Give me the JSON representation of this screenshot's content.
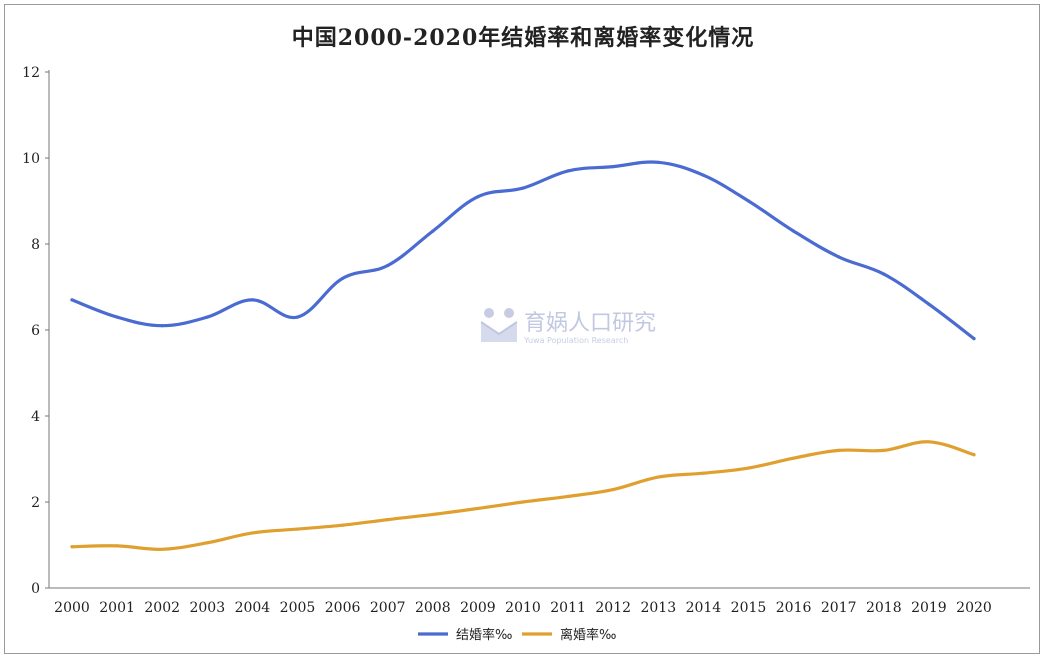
{
  "chart_data": {
    "type": "line",
    "title": "中国2000-2020年结婚率和离婚率变化情况",
    "categories": [
      "2000",
      "2001",
      "2002",
      "2003",
      "2004",
      "2005",
      "2006",
      "2007",
      "2008",
      "2009",
      "2010",
      "2011",
      "2012",
      "2013",
      "2014",
      "2015",
      "2016",
      "2017",
      "2018",
      "2019",
      "2020"
    ],
    "series": [
      {
        "name": "结婚率‰",
        "color": "#4a6bd1",
        "values": [
          6.7,
          6.3,
          6.1,
          6.3,
          6.7,
          6.3,
          7.2,
          7.5,
          8.3,
          9.1,
          9.3,
          9.7,
          9.8,
          9.9,
          9.6,
          9.0,
          8.3,
          7.7,
          7.3,
          6.6,
          5.8
        ]
      },
      {
        "name": "离婚率‰",
        "color": "#e0a030",
        "values": [
          0.96,
          0.98,
          0.9,
          1.05,
          1.28,
          1.37,
          1.46,
          1.59,
          1.71,
          1.85,
          2.0,
          2.13,
          2.29,
          2.58,
          2.67,
          2.79,
          3.02,
          3.2,
          3.2,
          3.4,
          3.1
        ]
      }
    ],
    "ylim": [
      0,
      12
    ],
    "yticks": [
      "0",
      "2",
      "4",
      "6",
      "8",
      "10",
      "12"
    ],
    "grid": false,
    "legend_position": "bottom"
  },
  "watermark": {
    "name": "育娲人口研究",
    "subtitle": "Yuwa Population Research",
    "icon": "yuwa-logo-icon",
    "color": "#9aa4cc"
  }
}
